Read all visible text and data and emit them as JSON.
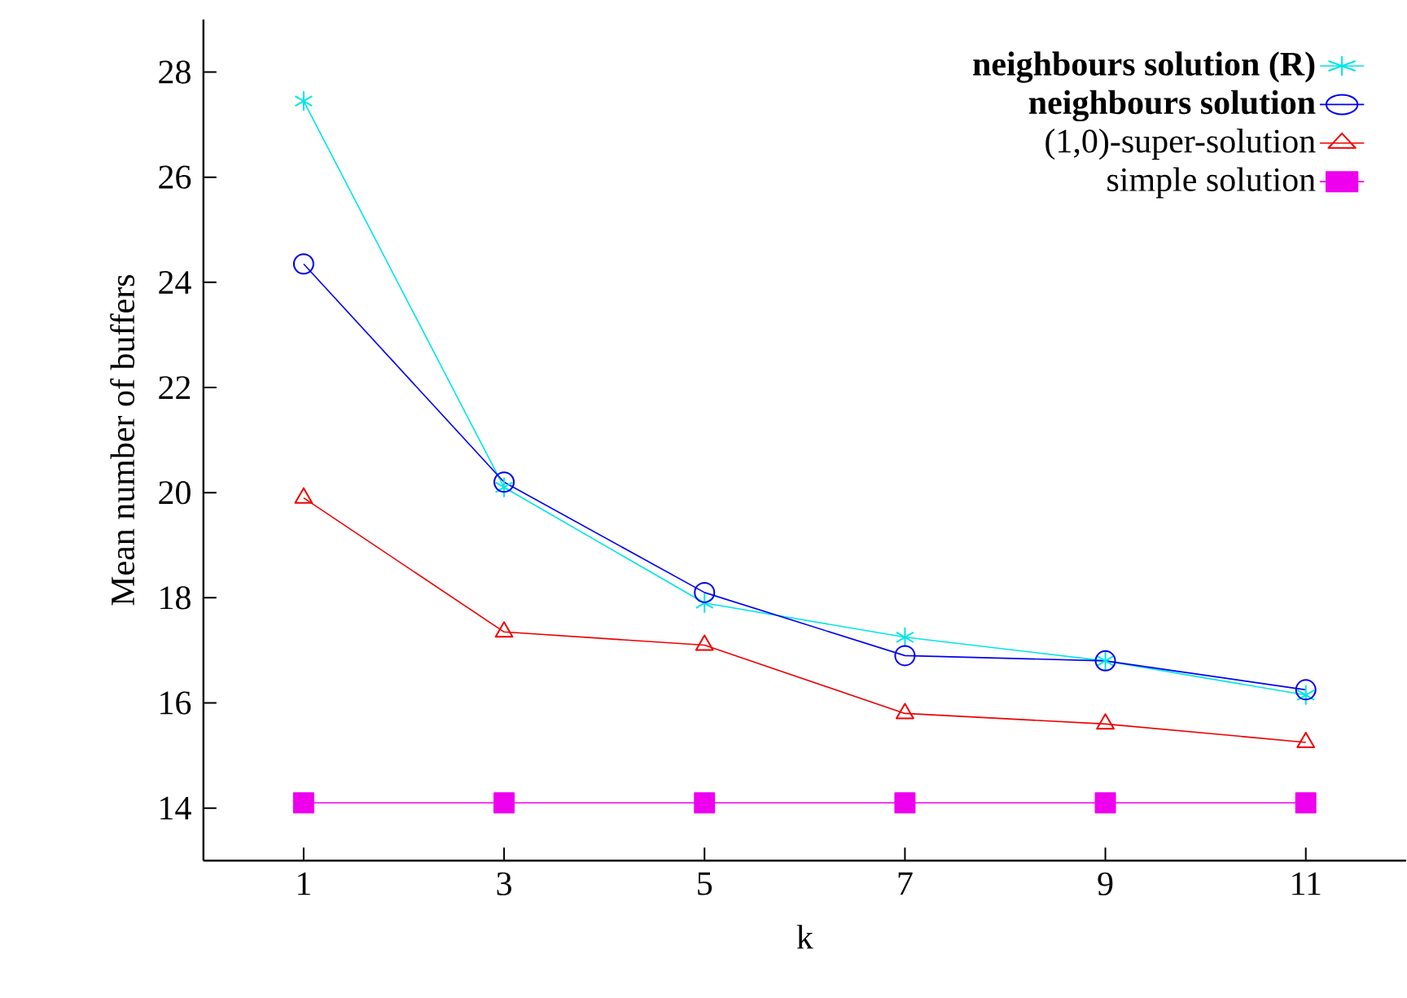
{
  "chart_data": {
    "type": "line",
    "xlabel": "k",
    "ylabel": "Mean number of buffers",
    "x": [
      1,
      3,
      5,
      7,
      9,
      11
    ],
    "series": [
      {
        "name": "**neighbours solution (R)**",
        "color": "#00e5e5",
        "marker": "cross",
        "values": [
          27.45,
          20.1,
          17.9,
          17.25,
          16.8,
          16.15
        ]
      },
      {
        "name": "**neighbours solution**",
        "color": "#0000ee",
        "marker": "circle",
        "values": [
          24.35,
          20.2,
          18.1,
          16.9,
          16.8,
          16.25
        ]
      },
      {
        "name": "(1,0)-super-solution",
        "color": "#ee0000",
        "marker": "triangle",
        "values": [
          19.9,
          17.35,
          17.1,
          15.8,
          15.6,
          15.25
        ]
      },
      {
        "name": "simple solution",
        "color": "#ee00ee",
        "marker": "square",
        "values": [
          14.1,
          14.1,
          14.1,
          14.1,
          14.1,
          14.1
        ]
      }
    ],
    "xlim": [
      0,
      12
    ],
    "ylim": [
      13,
      29
    ],
    "xticks": [
      1,
      3,
      5,
      7,
      9,
      11
    ],
    "yticks": [
      14,
      16,
      18,
      20,
      22,
      24,
      26,
      28
    ],
    "grid": false,
    "legend": "top right",
    "line_style": "solid"
  }
}
